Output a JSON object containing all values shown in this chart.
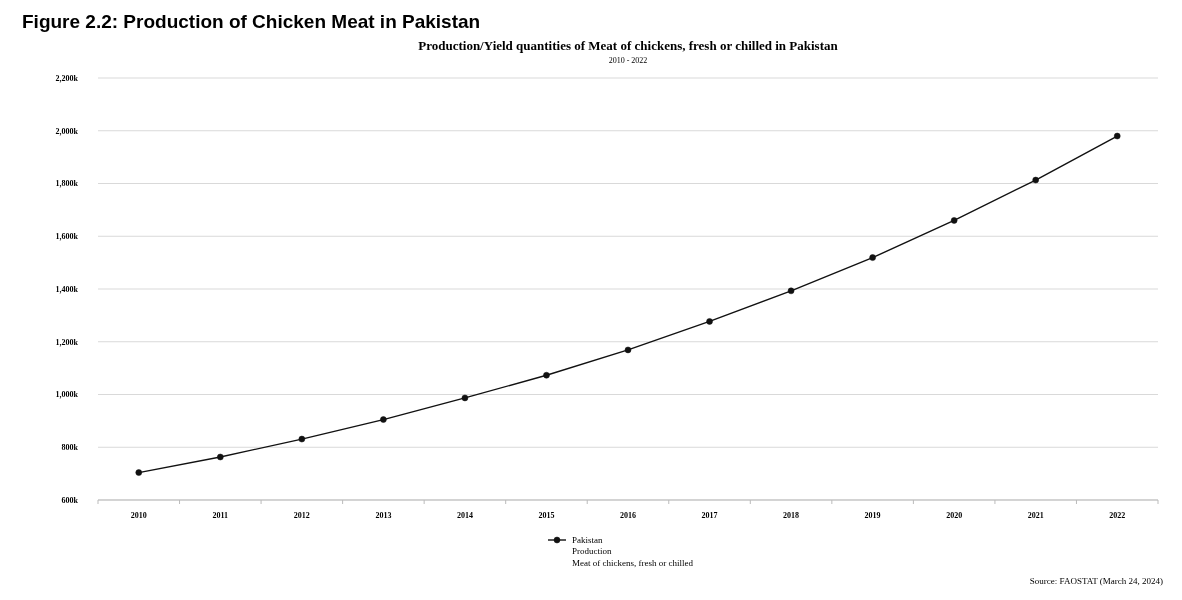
{
  "chart_data": {
    "type": "line",
    "title": "Figure 2.2: Production of Chicken Meat in Pakistan",
    "subtitle": "Production/Yield quantities of Meat of chickens, fresh or chilled in Pakistan",
    "annotations": [
      "2010 - 2022",
      "Source: FAOSTAT (March 24, 2024)"
    ],
    "categories": [
      "2010",
      "2011",
      "2012",
      "2013",
      "2014",
      "2015",
      "2016",
      "2017",
      "2018",
      "2019",
      "2020",
      "2021",
      "2022"
    ],
    "series": [
      {
        "name": "Pakistan\nProduction\nMeat of chickens, fresh or chilled",
        "color": "#111111",
        "values": [
          704000,
          763000,
          831000,
          905000,
          987000,
          1073000,
          1169000,
          1277000,
          1393000,
          1519000,
          1660000,
          1813000,
          1980000
        ]
      }
    ],
    "ylim": [
      600000,
      2200000
    ],
    "yticks": [
      {
        "value": 600000,
        "label": "600k"
      },
      {
        "value": 800000,
        "label": "800k"
      },
      {
        "value": 1000000,
        "label": "1,000k"
      },
      {
        "value": 1200000,
        "label": "1,200k"
      },
      {
        "value": 1400000,
        "label": "1,400k"
      },
      {
        "value": 1600000,
        "label": "1,600k"
      },
      {
        "value": 1800000,
        "label": "1,800k"
      },
      {
        "value": 2000000,
        "label": "2,000k"
      },
      {
        "value": 2200000,
        "label": "2,200k"
      }
    ],
    "grid": "y",
    "legend": "bottom",
    "marker": "circle",
    "line_style": "solid"
  }
}
